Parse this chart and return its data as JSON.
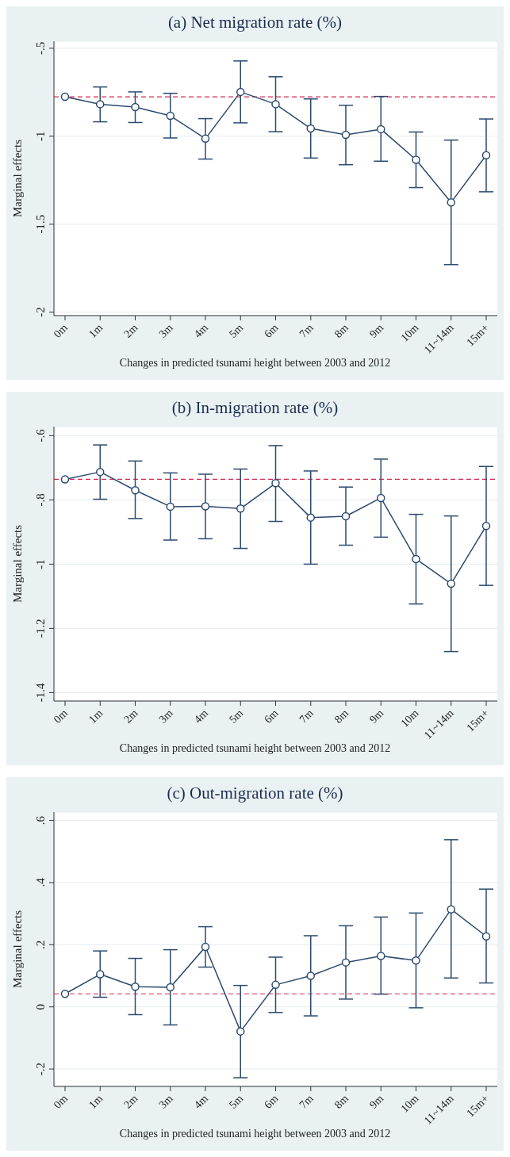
{
  "chart_data": [
    {
      "type": "line",
      "title": "(a) Net migration rate (%)",
      "xlabel": "Changes in predicted tsunami height between 2003 and 2012",
      "ylabel": "Marginal effects",
      "categories": [
        "0m",
        "1m",
        "2m",
        "3m",
        "4m",
        "5m",
        "6m",
        "7m",
        "8m",
        "9m",
        "10m",
        "11~14m",
        "15m+"
      ],
      "series": [
        {
          "color": "#2b4a6e",
          "values": [
            -0.776,
            -0.818,
            -0.834,
            -0.884,
            -1.014,
            -0.748,
            -0.818,
            -0.956,
            -0.992,
            -0.96,
            -1.134,
            -1.376,
            -1.108
          ],
          "errors": [
            null,
            [
              -0.918,
              -0.72
            ],
            [
              -0.922,
              -0.748
            ],
            [
              -1.01,
              -0.756
            ],
            [
              -1.13,
              -0.9
            ],
            [
              -0.924,
              -0.572
            ],
            [
              -0.974,
              -0.662
            ],
            [
              -1.124,
              -0.788
            ],
            [
              -1.162,
              -0.824
            ],
            [
              -1.142,
              -0.774
            ],
            [
              -1.292,
              -0.976
            ],
            [
              -1.73,
              -1.022
            ],
            [
              -1.316,
              -0.902
            ]
          ]
        }
      ],
      "ylim": [
        -2.02,
        -0.46
      ],
      "yticks": [
        {
          "value": -0.5,
          "label": "-.5"
        },
        -1,
        -1.5,
        -2
      ],
      "grid": "y",
      "marker": "circle",
      "ref_lines": [
        {
          "axis": "y",
          "value": -0.776,
          "color": "#d42a52",
          "line_style": "dashed"
        }
      ]
    },
    {
      "type": "line",
      "title": "(b) In-migration rate (%)",
      "xlabel": "Changes in predicted tsunami height between 2003 and 2012",
      "ylabel": "Marginal effects",
      "categories": [
        "0m",
        "1m",
        "2m",
        "3m",
        "4m",
        "5m",
        "6m",
        "7m",
        "8m",
        "9m",
        "10m",
        "11~14m",
        "15m+"
      ],
      "series": [
        {
          "color": "#2b4a6e",
          "values": [
            -0.736,
            -0.713,
            -0.77,
            -0.821,
            -0.82,
            -0.827,
            -0.748,
            -0.855,
            -0.851,
            -0.794,
            -0.984,
            -1.061,
            -0.881
          ],
          "errors": [
            null,
            [
              -0.798,
              -0.629
            ],
            [
              -0.858,
              -0.679
            ],
            [
              -0.925,
              -0.716
            ],
            [
              -0.921,
              -0.72
            ],
            [
              -0.951,
              -0.704
            ],
            [
              -0.867,
              -0.631
            ],
            [
              -1.0,
              -0.71
            ],
            [
              -0.941,
              -0.76
            ],
            [
              -0.916,
              -0.673
            ],
            [
              -1.124,
              -0.845
            ],
            [
              -1.272,
              -0.85
            ],
            [
              -1.066,
              -0.696
            ]
          ]
        }
      ],
      "ylim": [
        -1.426,
        -0.572
      ],
      "yticks": [
        {
          "value": -0.6,
          "label": "-.6"
        },
        {
          "value": -0.8,
          "label": "-.8"
        },
        -1,
        -1.2,
        -1.4
      ],
      "grid": "y",
      "marker": "circle",
      "ref_lines": [
        {
          "axis": "y",
          "value": -0.736,
          "color": "#d42a52",
          "line_style": "dashed"
        }
      ]
    },
    {
      "type": "line",
      "title": "(c) Out-migration rate (%)",
      "xlabel": "Changes in predicted tsunami height between 2003 and 2012",
      "ylabel": "Marginal effects",
      "categories": [
        "0m",
        "1m",
        "2m",
        "3m",
        "4m",
        "5m",
        "6m",
        "7m",
        "8m",
        "9m",
        "10m",
        "11~14m",
        "15m+"
      ],
      "series": [
        {
          "color": "#2b4a6e",
          "values": [
            0.042,
            0.105,
            0.065,
            0.063,
            0.193,
            -0.079,
            0.071,
            0.1,
            0.143,
            0.164,
            0.149,
            0.314,
            0.227
          ],
          "errors": [
            null,
            [
              0.031,
              0.18
            ],
            [
              -0.025,
              0.156
            ],
            [
              -0.058,
              0.184
            ],
            [
              0.128,
              0.258
            ],
            [
              -0.228,
              0.069
            ],
            [
              -0.018,
              0.16
            ],
            [
              -0.029,
              0.229
            ],
            [
              0.025,
              0.261
            ],
            [
              0.041,
              0.289
            ],
            [
              -0.003,
              0.302
            ],
            [
              0.093,
              0.538
            ],
            [
              0.077,
              0.379
            ]
          ]
        }
      ],
      "ylim": [
        -0.256,
        0.627
      ],
      "yticks": [
        {
          "value": 0.6,
          "label": ".6"
        },
        {
          "value": 0.4,
          "label": ".4"
        },
        {
          "value": 0.2,
          "label": ".2"
        },
        0,
        {
          "value": -0.2,
          "label": "-.2"
        }
      ],
      "grid": "y",
      "marker": "circle",
      "ref_lines": [
        {
          "axis": "y",
          "value": 0.042,
          "color": "#d42a52",
          "line_style": "dashed"
        }
      ]
    }
  ]
}
